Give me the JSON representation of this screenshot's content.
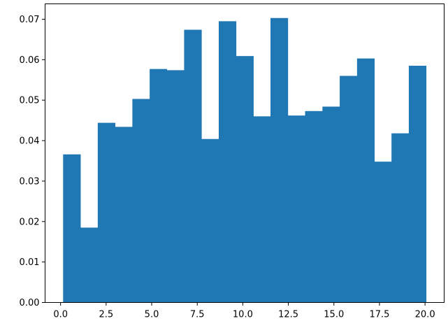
{
  "chart_data": {
    "type": "bar",
    "bins": [
      {
        "x0": 0.14,
        "x1": 1.09,
        "value": 0.0366
      },
      {
        "x0": 1.09,
        "x1": 2.04,
        "value": 0.0185
      },
      {
        "x0": 2.04,
        "x1": 2.99,
        "value": 0.0444
      },
      {
        "x0": 2.99,
        "x1": 3.94,
        "value": 0.0434
      },
      {
        "x0": 3.94,
        "x1": 4.89,
        "value": 0.0503
      },
      {
        "x0": 4.89,
        "x1": 5.83,
        "value": 0.0577
      },
      {
        "x0": 5.83,
        "x1": 6.78,
        "value": 0.0574
      },
      {
        "x0": 6.78,
        "x1": 7.73,
        "value": 0.0674
      },
      {
        "x0": 7.73,
        "x1": 8.68,
        "value": 0.0404
      },
      {
        "x0": 8.68,
        "x1": 9.63,
        "value": 0.0695
      },
      {
        "x0": 9.63,
        "x1": 10.58,
        "value": 0.0609
      },
      {
        "x0": 10.58,
        "x1": 11.52,
        "value": 0.046
      },
      {
        "x0": 11.52,
        "x1": 12.47,
        "value": 0.0703
      },
      {
        "x0": 12.47,
        "x1": 13.42,
        "value": 0.0462
      },
      {
        "x0": 13.42,
        "x1": 14.37,
        "value": 0.0473
      },
      {
        "x0": 14.37,
        "x1": 15.32,
        "value": 0.0484
      },
      {
        "x0": 15.32,
        "x1": 16.27,
        "value": 0.056
      },
      {
        "x0": 16.27,
        "x1": 17.22,
        "value": 0.0603
      },
      {
        "x0": 17.22,
        "x1": 18.16,
        "value": 0.0348
      },
      {
        "x0": 18.16,
        "x1": 19.11,
        "value": 0.0418
      },
      {
        "x0": 19.11,
        "x1": 20.06,
        "value": 0.0585
      }
    ],
    "bar_color": "#1f77b4",
    "xlim": [
      -0.85,
      21.05
    ],
    "ylim": [
      0,
      0.0738
    ],
    "xticks": [
      0.0,
      2.5,
      5.0,
      7.5,
      10.0,
      12.5,
      15.0,
      17.5,
      20.0
    ],
    "xtick_labels": [
      "0.0",
      "2.5",
      "5.0",
      "7.5",
      "10.0",
      "12.5",
      "15.0",
      "17.5",
      "20.0"
    ],
    "yticks": [
      0.0,
      0.01,
      0.02,
      0.03,
      0.04,
      0.05,
      0.06,
      0.07
    ],
    "ytick_labels": [
      "0.00",
      "0.01",
      "0.02",
      "0.03",
      "0.04",
      "0.05",
      "0.06",
      "0.07"
    ],
    "grid": false
  }
}
